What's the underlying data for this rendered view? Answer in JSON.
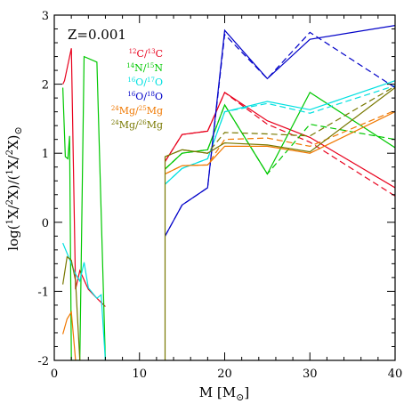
{
  "chart_data": {
    "type": "line",
    "title": "",
    "annotation": "Z=0.001",
    "xlabel": "M [M⊙]",
    "ylabel": "log(¹X/²X)/(¹X/²X)⊙",
    "xlim": [
      0,
      40
    ],
    "ylim": [
      -2,
      3
    ],
    "x_ticks": [
      0,
      10,
      20,
      30,
      40
    ],
    "y_ticks": [
      -2,
      -1,
      0,
      1,
      2,
      3
    ],
    "grid": false,
    "legend_position": "top-left",
    "series": [
      {
        "name": "12C/13C",
        "color": "#e8001c",
        "solid": [
          [
            1.0,
            2.0
          ],
          [
            1.2,
            2.05
          ],
          [
            2.0,
            2.52
          ],
          [
            2.5,
            -0.97
          ],
          [
            3.0,
            -0.7
          ],
          [
            4.0,
            -0.97
          ],
          [
            5.0,
            -1.1
          ],
          [
            6.0,
            -1.22
          ],
          null,
          [
            13.0,
            0.88
          ],
          [
            15.0,
            1.27
          ],
          [
            18.0,
            1.32
          ],
          [
            20.0,
            1.88
          ],
          [
            25.0,
            1.47
          ],
          [
            30.0,
            1.23
          ],
          [
            40.0,
            0.5
          ]
        ],
        "dashed": [
          [
            13.0,
            0.88
          ],
          [
            15.0,
            1.27
          ],
          [
            18.0,
            1.32
          ],
          [
            20.0,
            1.88
          ],
          [
            25.0,
            1.42
          ],
          [
            30.0,
            1.16
          ],
          [
            40.0,
            0.38
          ]
        ]
      },
      {
        "name": "14N/15N",
        "color": "#00c800",
        "solid": [
          [
            1.0,
            1.95
          ],
          [
            1.3,
            0.95
          ],
          [
            1.6,
            0.92
          ],
          [
            1.8,
            1.25
          ],
          [
            2.0,
            -2.0
          ],
          [
            3.0,
            -2.0
          ],
          [
            3.5,
            2.4
          ],
          [
            5.0,
            2.32
          ],
          [
            6.0,
            -2.0
          ],
          null,
          [
            13.0,
            0.77
          ],
          [
            15.0,
            1.0
          ],
          [
            18.0,
            1.05
          ],
          [
            20.0,
            1.7
          ],
          [
            25.0,
            0.7
          ],
          [
            30.0,
            1.88
          ],
          [
            40.0,
            1.08
          ]
        ],
        "dashed": [
          [
            13.0,
            0.77
          ],
          [
            15.0,
            1.0
          ],
          [
            18.0,
            1.05
          ],
          [
            20.0,
            1.7
          ],
          [
            25.0,
            0.7
          ],
          [
            30.0,
            1.42
          ],
          [
            40.0,
            1.2
          ]
        ]
      },
      {
        "name": "16O/17O",
        "color": "#00e0e0",
        "solid": [
          [
            1.0,
            -0.3
          ],
          [
            1.5,
            -0.45
          ],
          [
            2.0,
            -0.6
          ],
          [
            2.5,
            -0.75
          ],
          [
            3.0,
            -0.85
          ],
          [
            3.5,
            -0.58
          ],
          [
            4.0,
            -0.95
          ],
          [
            5.0,
            -1.1
          ],
          [
            5.5,
            -1.05
          ],
          [
            6.0,
            -2.0
          ],
          null,
          [
            13.0,
            0.55
          ],
          [
            15.0,
            0.78
          ],
          [
            18.0,
            0.92
          ],
          [
            20.0,
            1.6
          ],
          [
            25.0,
            1.75
          ],
          [
            30.0,
            1.63
          ],
          [
            40.0,
            2.05
          ]
        ],
        "dashed": [
          [
            13.0,
            0.55
          ],
          [
            15.0,
            0.78
          ],
          [
            18.0,
            0.92
          ],
          [
            20.0,
            1.6
          ],
          [
            25.0,
            1.72
          ],
          [
            30.0,
            1.58
          ],
          [
            40.0,
            1.98
          ]
        ]
      },
      {
        "name": "16O/18O",
        "color": "#0000c8",
        "solid": [
          [
            13.0,
            -0.2
          ],
          [
            15.0,
            0.25
          ],
          [
            18.0,
            0.5
          ],
          [
            20.0,
            2.78
          ],
          [
            25.0,
            2.08
          ],
          [
            30.0,
            2.65
          ],
          [
            40.0,
            2.85
          ]
        ],
        "dashed": [
          [
            13.0,
            -0.2
          ],
          [
            15.0,
            0.25
          ],
          [
            18.0,
            0.5
          ],
          [
            20.0,
            2.72
          ],
          [
            25.0,
            2.08
          ],
          [
            30.0,
            2.75
          ],
          [
            40.0,
            1.95
          ]
        ]
      },
      {
        "name": "24Mg/25Mg",
        "color": "#f07800",
        "solid": [
          [
            1.0,
            -1.62
          ],
          [
            1.5,
            -1.4
          ],
          [
            2.0,
            -1.3
          ],
          [
            2.5,
            -2.0
          ],
          null,
          [
            13.0,
            0.7
          ],
          [
            15.0,
            0.82
          ],
          [
            18.0,
            0.83
          ],
          [
            20.0,
            1.1
          ],
          [
            25.0,
            1.1
          ],
          [
            30.0,
            1.0
          ],
          [
            40.0,
            1.6
          ]
        ],
        "dashed": [
          [
            13.0,
            0.7
          ],
          [
            15.0,
            0.82
          ],
          [
            18.0,
            0.83
          ],
          [
            20.0,
            1.2
          ],
          [
            25.0,
            1.22
          ],
          [
            30.0,
            1.1
          ],
          [
            40.0,
            1.62
          ]
        ]
      },
      {
        "name": "24Mg/26Mg",
        "color": "#787800",
        "solid": [
          [
            1.0,
            -0.9
          ],
          [
            1.5,
            -0.5
          ],
          [
            2.0,
            -0.55
          ],
          [
            2.5,
            -0.85
          ],
          [
            3.0,
            -2.0
          ],
          null,
          [
            13.0,
            -2.0
          ],
          [
            13.0,
            0.95
          ],
          [
            15.0,
            1.05
          ],
          [
            18.0,
            1.0
          ],
          [
            20.0,
            1.15
          ],
          [
            25.0,
            1.12
          ],
          [
            30.0,
            1.02
          ],
          [
            40.0,
            1.95
          ]
        ],
        "dashed": [
          [
            13.0,
            0.95
          ],
          [
            15.0,
            1.05
          ],
          [
            18.0,
            1.0
          ],
          [
            20.0,
            1.3
          ],
          [
            25.0,
            1.28
          ],
          [
            30.0,
            1.25
          ],
          [
            40.0,
            1.97
          ]
        ]
      }
    ]
  },
  "legend": [
    {
      "mass1": "12",
      "el1": "C",
      "sep": "/",
      "mass2": "13",
      "el2": "C",
      "color": "#e8001c"
    },
    {
      "mass1": "14",
      "el1": "N",
      "sep": "/",
      "mass2": "15",
      "el2": "N",
      "color": "#00c800"
    },
    {
      "mass1": "16",
      "el1": "O",
      "sep": "/",
      "mass2": "17",
      "el2": "O",
      "color": "#00e0e0"
    },
    {
      "mass1": "16",
      "el1": "O",
      "sep": "/",
      "mass2": "18",
      "el2": "O",
      "color": "#0000c8"
    },
    {
      "mass1": "24",
      "el1": "Mg",
      "sep": "/",
      "mass2": "25",
      "el2": "Mg",
      "color": "#f07800"
    },
    {
      "mass1": "24",
      "el1": "Mg",
      "sep": "/",
      "mass2": "26",
      "el2": "Mg",
      "color": "#787800"
    }
  ],
  "axis_text": {
    "x_main": "M  [M",
    "x_sub": "⊙",
    "x_close": "]",
    "y_a": "log(",
    "y_sup1": "1",
    "y_b": "X/",
    "y_sup2": "2",
    "y_c": "X)/(",
    "y_sup3": "1",
    "y_d": "X/",
    "y_sup4": "2",
    "y_e": "X)",
    "y_sub": "⊙"
  }
}
